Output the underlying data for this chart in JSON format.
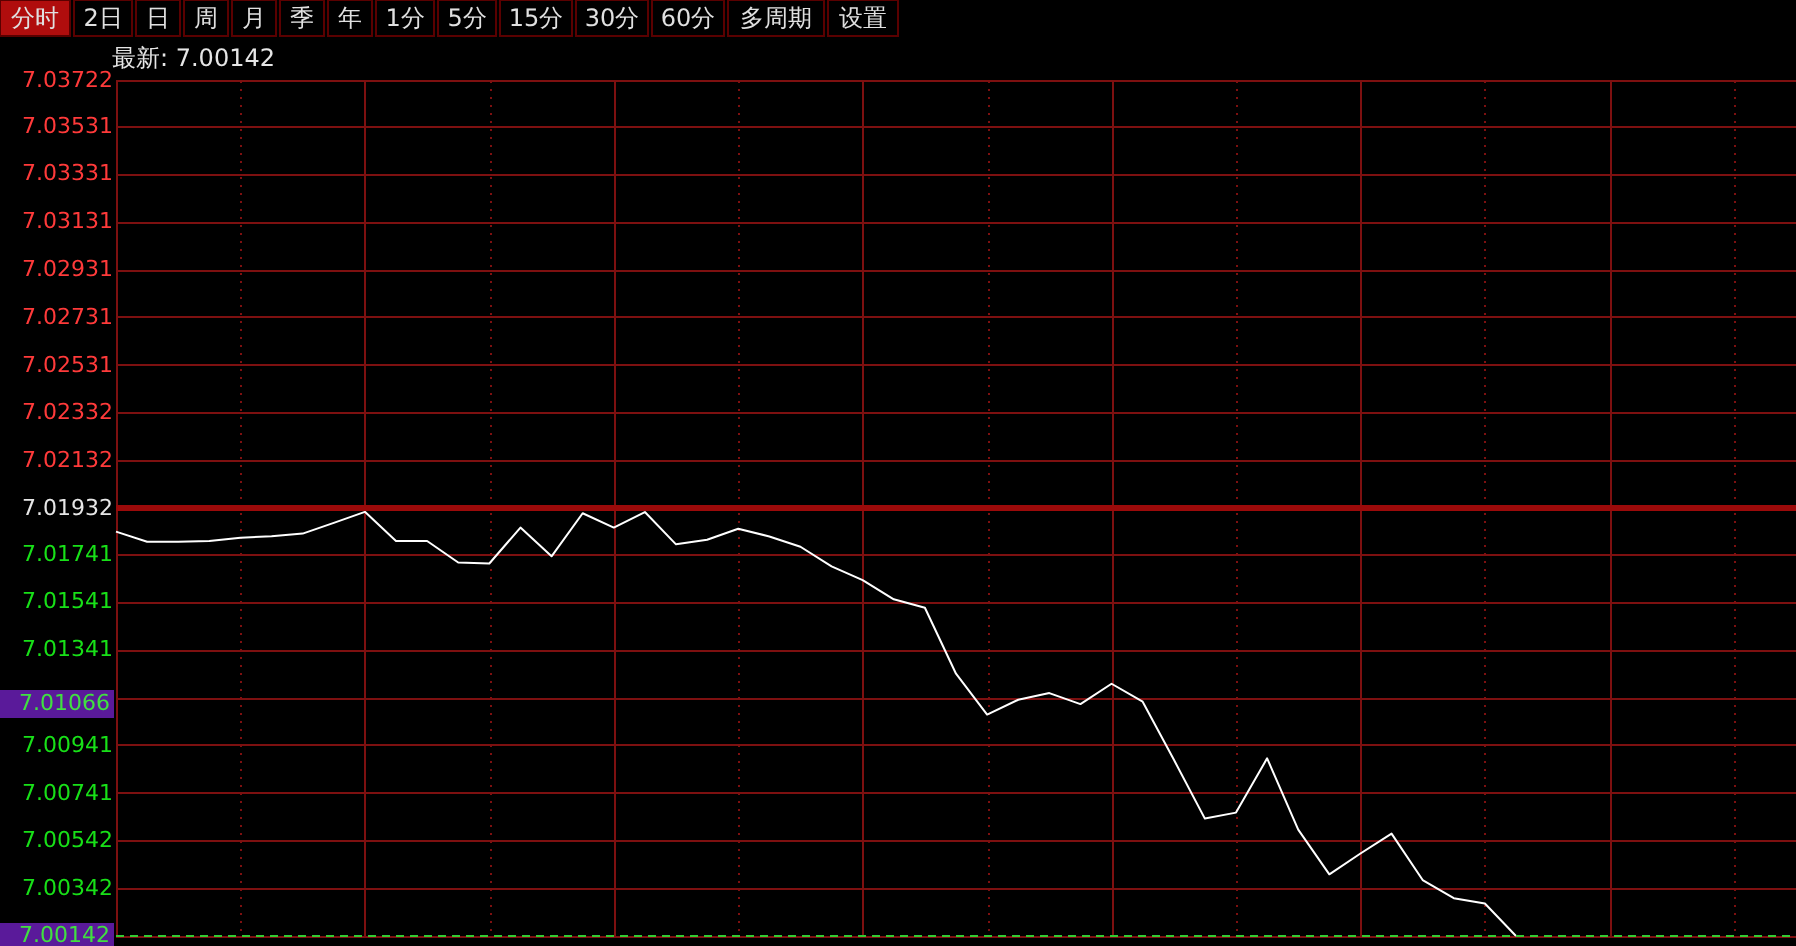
{
  "chart_data": {
    "type": "line",
    "subtitle": "最新: 7.00142",
    "annotations": [
      "分时",
      "2日",
      "日",
      "周",
      "月",
      "季",
      "年",
      "1分",
      "5分",
      "15分",
      "30分",
      "60分",
      "多周期",
      "设置",
      "7.01066"
    ],
    "categories": [
      null,
      null,
      null,
      null,
      null,
      null,
      null,
      null,
      null,
      null,
      null,
      null,
      null,
      null,
      null,
      null,
      null,
      null,
      null,
      null,
      null,
      null,
      null,
      null,
      null,
      null,
      null,
      null,
      null,
      null,
      null,
      null,
      null,
      null,
      null,
      null,
      null,
      null,
      null,
      null,
      null,
      null,
      null,
      null,
      null,
      null,
      null,
      null,
      null,
      null,
      null,
      null,
      null,
      null,
      null
    ],
    "series": [
      {
        "color": "#ffffff",
        "values": [
          7.01833,
          7.01791,
          7.01791,
          7.01794,
          7.01808,
          7.01814,
          7.01825,
          7.0187,
          7.01916,
          7.01794,
          7.01794,
          7.01704,
          7.017,
          7.0185,
          7.0173,
          7.0191,
          7.0185,
          7.01915,
          7.0178,
          7.01799,
          7.01845,
          7.01813,
          7.0177,
          7.01688,
          7.0163,
          7.0155,
          7.01515,
          7.01239,
          7.01068,
          7.0113,
          7.01158,
          7.01112,
          7.01197,
          7.01122,
          7.0088,
          7.00633,
          7.00658,
          7.00885,
          7.00587,
          7.004,
          7.00487,
          7.0057,
          7.00376,
          7.003,
          7.00278,
          7.00142,
          null,
          null,
          null,
          null,
          null,
          null,
          null,
          null,
          null
        ]
      }
    ],
    "ylim": [
      7.00142,
      7.03722
    ],
    "yticks": [
      7.03722,
      7.03531,
      7.03331,
      7.03131,
      7.02931,
      7.02731,
      7.02531,
      7.02332,
      7.02132,
      7.01932,
      7.01741,
      7.01541,
      7.01341,
      {
        "value": 7.01141,
        "label": null
      },
      7.00941,
      7.00741,
      7.00542,
      7.00342
    ],
    "ref_lines": [
      {
        "axis": "y",
        "value": 7.01932,
        "color": "#9b0a0a",
        "line_style": "solid"
      },
      {
        "axis": "y",
        "value": 7.00142,
        "label": "7.00142",
        "color": "#33cc33",
        "line_style": "dashed"
      }
    ],
    "tick_labels": "y",
    "grid": true,
    "marker": "none",
    "line_style": "solid"
  }
}
